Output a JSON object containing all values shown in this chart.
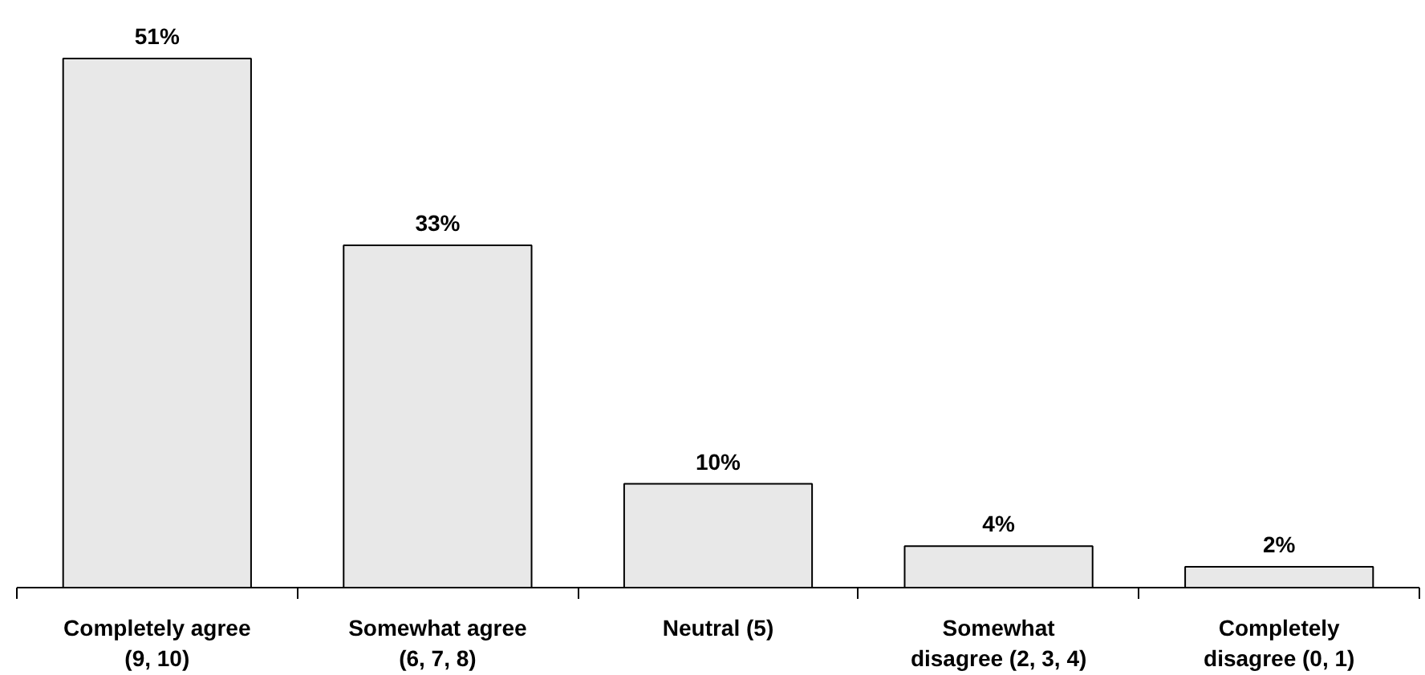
{
  "chart_data": {
    "type": "bar",
    "categories": [
      "Completely agree\n(9, 10)",
      "Somewhat agree\n(6, 7, 8)",
      "Neutral (5)",
      "Somewhat\ndisagree (2, 3, 4)",
      "Completely\ndisagree (0, 1)"
    ],
    "values": [
      51,
      33,
      10,
      4,
      2
    ],
    "value_labels": [
      "51%",
      "33%",
      "10%",
      "4%",
      "2%"
    ],
    "color": "#e8e8e8"
  }
}
